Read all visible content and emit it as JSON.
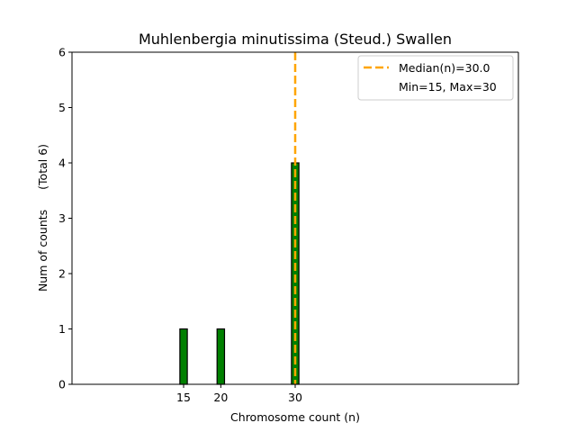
{
  "chart_data": {
    "type": "bar",
    "title": "Muhlenbergia minutissima (Steud.) Swallen",
    "xlabel": "Chromosome count (n)",
    "ylabel_main": "Num of counts",
    "ylabel_total": "(Total 6)",
    "xlim": [
      0,
      60
    ],
    "ylim": [
      0,
      6
    ],
    "x_ticks": [
      15,
      20,
      30
    ],
    "y_ticks": [
      0,
      1,
      2,
      3,
      4,
      5,
      6
    ],
    "bin_width": 1,
    "bars": [
      {
        "x": 15,
        "count": 1
      },
      {
        "x": 20,
        "count": 1
      },
      {
        "x": 30,
        "count": 4
      }
    ],
    "baseline_range": [
      0,
      33
    ],
    "median_value": 30.0,
    "legend": {
      "median_label": "Median(n)=30.0",
      "range_label": "Min=15, Max=30"
    },
    "colors": {
      "bar_fill": "#008000",
      "bar_edge": "#000000",
      "median_line": "#ffa500"
    }
  }
}
